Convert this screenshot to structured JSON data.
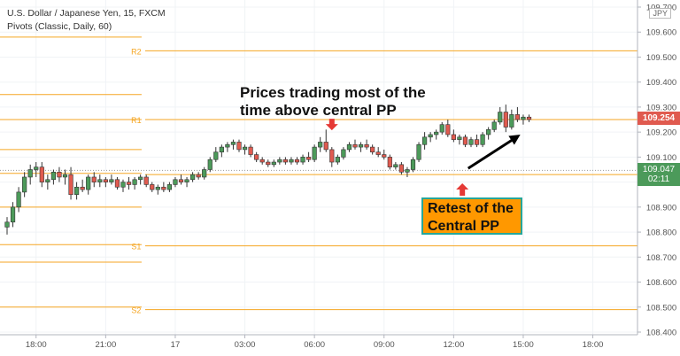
{
  "header": {
    "symbol": "U.S. Dollar / Japanese Yen, 15, FXCM",
    "indicator": "Pivots (Classic, Daily, 60)"
  },
  "currency_badge": "JPY",
  "last_price_tag": {
    "value": "109.254",
    "color": "#e05a4f"
  },
  "close_tag": {
    "value": "109.047",
    "countdown": "02:11",
    "color": "#4c9a5a"
  },
  "annotations": {
    "main_line1": "Prices trading most of the",
    "main_line2": "time above central PP",
    "box_line1": "Retest of the",
    "box_line2": "Central PP"
  },
  "chart_data": {
    "type": "candlestick",
    "y_axis": {
      "min": 108.4,
      "max": 109.7,
      "ticks": [
        109.7,
        109.6,
        109.5,
        109.4,
        109.3,
        109.2,
        109.1,
        109.0,
        108.9,
        108.8,
        108.7,
        108.6,
        108.5,
        108.4
      ],
      "tick_labels": [
        "109.700",
        "109.600",
        "109.500",
        "109.400",
        "109.300",
        "109.200",
        "109.100",
        "109.000",
        "108.900",
        "108.800",
        "108.700",
        "108.600",
        "108.500",
        "108.400"
      ]
    },
    "x_axis": {
      "labels": [
        {
          "text": "18:00",
          "bar": 5
        },
        {
          "text": "21:00",
          "bar": 17
        },
        {
          "text": "17",
          "bar": 29
        },
        {
          "text": "03:00",
          "bar": 41
        },
        {
          "text": "06:00",
          "bar": 53
        },
        {
          "text": "09:00",
          "bar": 65
        },
        {
          "text": "12:00",
          "bar": 77
        },
        {
          "text": "15:00",
          "bar": 89
        },
        {
          "text": "18:00",
          "bar": 101
        }
      ]
    },
    "pivots": [
      {
        "name": "R2",
        "day1": 109.58,
        "day2": 109.525
      },
      {
        "name": "",
        "day1": 109.35,
        "day2": null
      },
      {
        "name": "R1",
        "day1": 109.25,
        "day2": 109.25
      },
      {
        "name": "",
        "day1": 109.13,
        "day2": null
      },
      {
        "name": "PP",
        "day1": 109.035,
        "day2": 109.03
      },
      {
        "name": "",
        "day1": 108.9,
        "day2": null
      },
      {
        "name": "S1",
        "day1": 108.75,
        "day2": 108.745
      },
      {
        "name": "",
        "day1": 108.68,
        "day2": null
      },
      {
        "name": "S2",
        "day1": 108.5,
        "day2": 108.49
      }
    ],
    "pivot_split_bar": 23.5,
    "candles": [
      [
        108.82,
        108.86,
        108.79,
        108.84
      ],
      [
        108.84,
        108.92,
        108.82,
        108.9
      ],
      [
        108.9,
        108.98,
        108.88,
        108.96
      ],
      [
        108.96,
        109.04,
        108.94,
        109.02
      ],
      [
        109.02,
        109.07,
        108.99,
        109.05
      ],
      [
        109.05,
        109.08,
        109.02,
        109.06
      ],
      [
        109.06,
        109.08,
        108.98,
        109.0
      ],
      [
        109.0,
        109.03,
        108.97,
        109.01
      ],
      [
        109.01,
        109.05,
        108.99,
        109.04
      ],
      [
        109.04,
        109.06,
        109.0,
        109.02
      ],
      [
        109.02,
        109.05,
        108.99,
        109.03
      ],
      [
        109.03,
        109.06,
        108.93,
        108.95
      ],
      [
        108.95,
        109.0,
        108.93,
        108.98
      ],
      [
        108.98,
        109.01,
        108.96,
        108.97
      ],
      [
        108.97,
        109.03,
        108.95,
        109.02
      ],
      [
        109.02,
        109.04,
        108.98,
        109.0
      ],
      [
        109.0,
        109.03,
        108.98,
        109.01
      ],
      [
        109.01,
        109.02,
        108.98,
        109.0
      ],
      [
        109.0,
        109.03,
        108.99,
        109.01
      ],
      [
        109.01,
        109.02,
        108.97,
        108.98
      ],
      [
        108.98,
        109.01,
        108.96,
        109.0
      ],
      [
        109.0,
        109.02,
        108.97,
        108.99
      ],
      [
        108.99,
        109.02,
        108.97,
        109.01
      ],
      [
        109.01,
        109.03,
        108.99,
        109.02
      ],
      [
        109.02,
        109.03,
        108.98,
        108.99
      ],
      [
        108.99,
        109.0,
        108.96,
        108.97
      ],
      [
        108.97,
        108.99,
        108.95,
        108.98
      ],
      [
        108.98,
        109.0,
        108.96,
        108.97
      ],
      [
        108.97,
        109.0,
        108.96,
        108.99
      ],
      [
        108.99,
        109.02,
        108.98,
        109.01
      ],
      [
        109.01,
        109.03,
        108.99,
        109.0
      ],
      [
        109.0,
        109.02,
        108.98,
        109.01
      ],
      [
        109.01,
        109.04,
        109.0,
        109.03
      ],
      [
        109.03,
        109.04,
        109.01,
        109.02
      ],
      [
        109.02,
        109.06,
        109.01,
        109.05
      ],
      [
        109.05,
        109.1,
        109.04,
        109.09
      ],
      [
        109.09,
        109.14,
        109.08,
        109.12
      ],
      [
        109.12,
        109.15,
        109.1,
        109.14
      ],
      [
        109.14,
        109.16,
        109.12,
        109.15
      ],
      [
        109.15,
        109.17,
        109.13,
        109.16
      ],
      [
        109.16,
        109.17,
        109.12,
        109.13
      ],
      [
        109.13,
        109.15,
        109.11,
        109.14
      ],
      [
        109.14,
        109.15,
        109.1,
        109.11
      ],
      [
        109.11,
        109.12,
        109.08,
        109.09
      ],
      [
        109.09,
        109.1,
        109.07,
        109.08
      ],
      [
        109.08,
        109.09,
        109.06,
        109.07
      ],
      [
        109.07,
        109.09,
        109.06,
        109.08
      ],
      [
        109.08,
        109.1,
        109.07,
        109.09
      ],
      [
        109.09,
        109.1,
        109.07,
        109.08
      ],
      [
        109.08,
        109.1,
        109.07,
        109.09
      ],
      [
        109.09,
        109.1,
        109.07,
        109.08
      ],
      [
        109.08,
        109.11,
        109.07,
        109.1
      ],
      [
        109.1,
        109.12,
        109.08,
        109.09
      ],
      [
        109.09,
        109.15,
        109.08,
        109.14
      ],
      [
        109.14,
        109.18,
        109.12,
        109.16
      ],
      [
        109.16,
        109.21,
        109.12,
        109.13
      ],
      [
        109.13,
        109.14,
        109.06,
        109.08
      ],
      [
        109.08,
        109.11,
        109.07,
        109.1
      ],
      [
        109.1,
        109.14,
        109.09,
        109.13
      ],
      [
        109.13,
        109.16,
        109.12,
        109.15
      ],
      [
        109.15,
        109.17,
        109.13,
        109.14
      ],
      [
        109.14,
        109.16,
        109.12,
        109.15
      ],
      [
        109.15,
        109.17,
        109.13,
        109.14
      ],
      [
        109.14,
        109.15,
        109.11,
        109.12
      ],
      [
        109.12,
        109.14,
        109.1,
        109.11
      ],
      [
        109.11,
        109.13,
        109.09,
        109.1
      ],
      [
        109.1,
        109.11,
        109.05,
        109.06
      ],
      [
        109.06,
        109.08,
        109.05,
        109.07
      ],
      [
        109.07,
        109.08,
        109.03,
        109.04
      ],
      [
        109.04,
        109.06,
        109.02,
        109.05
      ],
      [
        109.05,
        109.1,
        109.04,
        109.09
      ],
      [
        109.09,
        109.16,
        109.08,
        109.15
      ],
      [
        109.15,
        109.2,
        109.13,
        109.18
      ],
      [
        109.18,
        109.2,
        109.16,
        109.19
      ],
      [
        109.19,
        109.21,
        109.17,
        109.2
      ],
      [
        109.2,
        109.24,
        109.19,
        109.23
      ],
      [
        109.23,
        109.25,
        109.18,
        109.19
      ],
      [
        109.19,
        109.21,
        109.16,
        109.17
      ],
      [
        109.17,
        109.19,
        109.15,
        109.18
      ],
      [
        109.18,
        109.19,
        109.14,
        109.15
      ],
      [
        109.15,
        109.18,
        109.14,
        109.17
      ],
      [
        109.17,
        109.19,
        109.14,
        109.15
      ],
      [
        109.15,
        109.2,
        109.14,
        109.19
      ],
      [
        109.19,
        109.22,
        109.17,
        109.21
      ],
      [
        109.21,
        109.25,
        109.2,
        109.24
      ],
      [
        109.24,
        109.3,
        109.23,
        109.28
      ],
      [
        109.28,
        109.31,
        109.2,
        109.22
      ],
      [
        109.22,
        109.29,
        109.21,
        109.27
      ],
      [
        109.27,
        109.3,
        109.24,
        109.25
      ],
      [
        109.25,
        109.27,
        109.23,
        109.26
      ],
      [
        109.26,
        109.27,
        109.24,
        109.25
      ]
    ],
    "callouts": [
      {
        "type": "arrow-down",
        "bar": 56,
        "price": 109.225,
        "color": "#e53935"
      },
      {
        "type": "arrow-up",
        "bar": 78.5,
        "price": 108.995,
        "color": "#e53935"
      },
      {
        "type": "line-arrow",
        "from_bar": 79.5,
        "from_price": 109.055,
        "to_bar": 88.5,
        "to_price": 109.19,
        "color": "#000000"
      }
    ]
  }
}
